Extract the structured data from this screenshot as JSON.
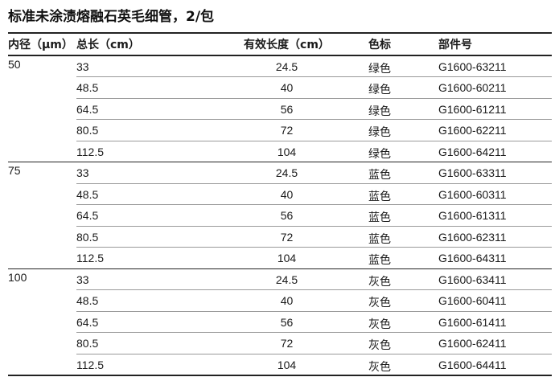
{
  "title": "标准未涂渍熔融石英毛细管，2/包",
  "headers": {
    "id": "内径（μm）",
    "total": "总长（cm）",
    "effective": "有效长度（cm）",
    "color": "色标",
    "part": "部件号"
  },
  "groups": [
    {
      "id": "50",
      "rows": [
        {
          "total": "33",
          "effective": "24.5",
          "color": "绿色",
          "part": "G1600-63211"
        },
        {
          "total": "48.5",
          "effective": "40",
          "color": "绿色",
          "part": "G1600-60211"
        },
        {
          "total": "64.5",
          "effective": "56",
          "color": "绿色",
          "part": "G1600-61211"
        },
        {
          "total": "80.5",
          "effective": "72",
          "color": "绿色",
          "part": "G1600-62211"
        },
        {
          "total": "112.5",
          "effective": "104",
          "color": "绿色",
          "part": "G1600-64211"
        }
      ]
    },
    {
      "id": "75",
      "rows": [
        {
          "total": "33",
          "effective": "24.5",
          "color": "蓝色",
          "part": "G1600-63311"
        },
        {
          "total": "48.5",
          "effective": "40",
          "color": "蓝色",
          "part": "G1600-60311"
        },
        {
          "total": "64.5",
          "effective": "56",
          "color": "蓝色",
          "part": "G1600-61311"
        },
        {
          "total": "80.5",
          "effective": "72",
          "color": "蓝色",
          "part": "G1600-62311"
        },
        {
          "total": "112.5",
          "effective": "104",
          "color": "蓝色",
          "part": "G1600-64311"
        }
      ]
    },
    {
      "id": "100",
      "rows": [
        {
          "total": "33",
          "effective": "24.5",
          "color": "灰色",
          "part": "G1600-63411"
        },
        {
          "total": "48.5",
          "effective": "40",
          "color": "灰色",
          "part": "G1600-60411"
        },
        {
          "total": "64.5",
          "effective": "56",
          "color": "灰色",
          "part": "G1600-61411"
        },
        {
          "total": "80.5",
          "effective": "72",
          "color": "灰色",
          "part": "G1600-62411"
        },
        {
          "total": "112.5",
          "effective": "104",
          "color": "灰色",
          "part": "G1600-64411"
        }
      ]
    }
  ]
}
